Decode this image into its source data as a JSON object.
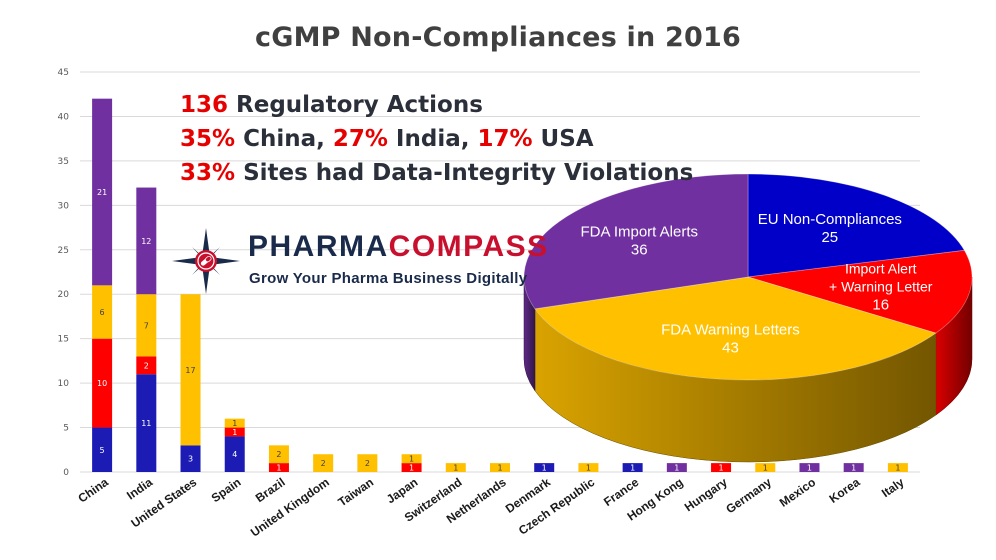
{
  "chart_data": [
    {
      "type": "bar",
      "stacked": true,
      "title": "cGMP Non-Compliances in 2016",
      "categories": [
        "China",
        "India",
        "United States",
        "Spain",
        "Brazil",
        "United Kingdom",
        "Taiwan",
        "Japan",
        "Switzerland",
        "Netherlands",
        "Denmark",
        "Czech Republic",
        "France",
        "Hong Kong",
        "Hungary",
        "Germany",
        "Mexico",
        "Korea",
        "Italy"
      ],
      "series": [
        {
          "color": "#1c1cb4",
          "values": [
            5,
            11,
            3,
            4,
            0,
            0,
            0,
            0,
            0,
            0,
            1,
            0,
            1,
            0,
            0,
            0,
            0,
            0,
            0
          ]
        },
        {
          "color": "#ff0000",
          "values": [
            10,
            2,
            0,
            1,
            1,
            0,
            0,
            1,
            0,
            0,
            0,
            0,
            0,
            0,
            1,
            0,
            0,
            0,
            0
          ]
        },
        {
          "color": "#ffc000",
          "values": [
            6,
            7,
            17,
            1,
            2,
            2,
            2,
            1,
            1,
            1,
            0,
            1,
            0,
            0,
            0,
            1,
            0,
            0,
            1
          ]
        },
        {
          "color": "#7030a0",
          "values": [
            21,
            12,
            0,
            0,
            0,
            0,
            0,
            0,
            0,
            0,
            0,
            0,
            0,
            1,
            0,
            0,
            1,
            1,
            0
          ]
        }
      ],
      "ylim": [
        0,
        45
      ],
      "yticks": [
        0,
        5,
        10,
        15,
        20,
        25,
        30,
        35,
        40,
        45
      ],
      "grid": true
    },
    {
      "type": "pie",
      "style": "3d",
      "slices": [
        {
          "label": "EU Non-Compliances",
          "value": 25,
          "color": "#0000c8"
        },
        {
          "label": "Import Alert + Warning Letter",
          "label_lines": [
            "Import Alert",
            "+ Warning Letter"
          ],
          "value": 16,
          "color": "#ff0000"
        },
        {
          "label": "FDA Warning Letters",
          "value": 43,
          "color": "#ffc000"
        },
        {
          "label": "FDA Import Alerts",
          "value": 36,
          "color": "#7030a0"
        }
      ]
    }
  ],
  "highlights": [
    {
      "number": "136",
      "text": " Regulatory Actions"
    },
    {
      "parts": [
        {
          "t": "35%",
          "red": true
        },
        {
          "t": " China, ",
          "red": false
        },
        {
          "t": "27%",
          "red": true
        },
        {
          "t": " India, ",
          "red": false
        },
        {
          "t": "17%",
          "red": true
        },
        {
          "t": " USA",
          "red": false
        }
      ]
    },
    {
      "number": "33%",
      "text": " Sites had Data-Integrity Violations"
    }
  ],
  "logo": {
    "name_part1": "PHARMA",
    "name_part2": "COMPASS",
    "tagline": "Grow Your Pharma Business Digitally",
    "colors": {
      "navy": "#1a2a4a",
      "red": "#c8102e"
    }
  }
}
